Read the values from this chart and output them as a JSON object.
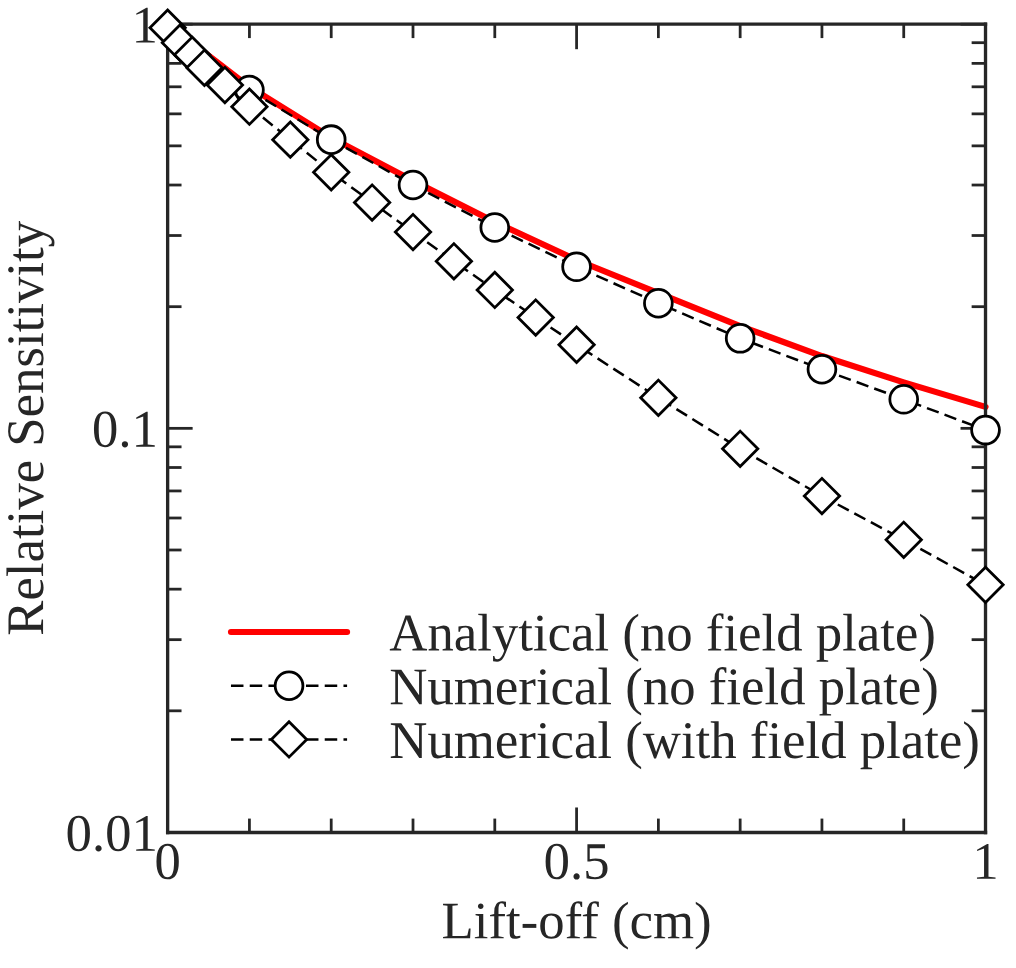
{
  "chart_data": {
    "type": "line",
    "xlabel": "Lift-off (cm)",
    "ylabel": "Relative Sensitivity",
    "xlim": [
      0,
      1
    ],
    "ylim": [
      0.01,
      1
    ],
    "xticks": [
      0,
      0.5,
      1
    ],
    "yticks": [
      0.01,
      0.1,
      1
    ],
    "log": "y",
    "grid": false,
    "legend": "bottom left",
    "series": [
      {
        "name": "Analytical (no field plate)",
        "color": "#ff0000",
        "marker": "none",
        "line_style": "solid",
        "x": [
          0,
          0.1,
          0.2,
          0.3,
          0.4,
          0.5,
          0.6,
          0.7,
          0.8,
          0.9,
          1.0
        ],
        "values": [
          1,
          0.7,
          0.524,
          0.41,
          0.324,
          0.261,
          0.216,
          0.179,
          0.151,
          0.13,
          0.113
        ]
      },
      {
        "name": "Numerical (no field plate)",
        "color": "#000000",
        "marker": "circle",
        "line_style": "dashed",
        "x": [
          0.1,
          0.2,
          0.3,
          0.4,
          0.5,
          0.6,
          0.7,
          0.8,
          0.9,
          1.0
        ],
        "values": [
          0.687,
          0.518,
          0.4,
          0.314,
          0.251,
          0.204,
          0.167,
          0.14,
          0.118,
          0.099
        ]
      },
      {
        "name": "Numerical (with field plate)",
        "color": "#000000",
        "marker": "diamond",
        "line_style": "dashed",
        "x": [
          0,
          0.015,
          0.03,
          0.045,
          0.07,
          0.1,
          0.15,
          0.2,
          0.25,
          0.3,
          0.35,
          0.4,
          0.45,
          0.5,
          0.6,
          0.7,
          0.8,
          0.9,
          1.0
        ],
        "values": [
          0.98,
          0.9,
          0.84,
          0.78,
          0.707,
          0.625,
          0.518,
          0.43,
          0.362,
          0.306,
          0.259,
          0.22,
          0.188,
          0.161,
          0.119,
          0.089,
          0.068,
          0.053,
          0.041
        ]
      }
    ]
  }
}
